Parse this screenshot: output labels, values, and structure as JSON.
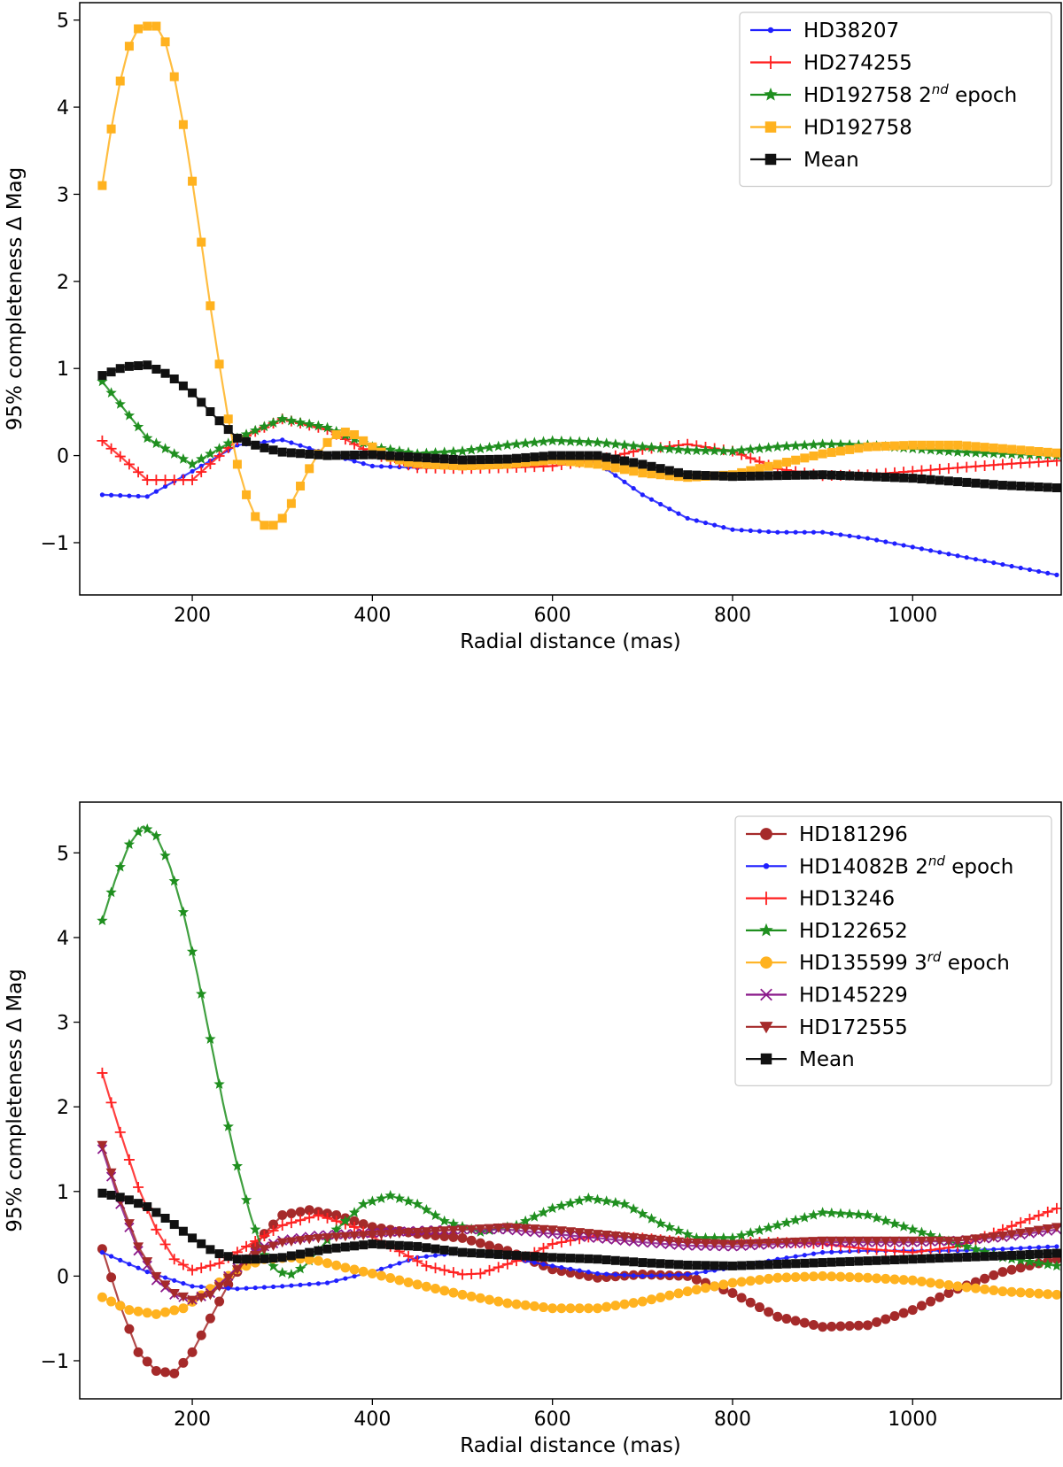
{
  "chart_data": [
    {
      "type": "line",
      "title": "",
      "xlabel": "Radial distance (mas)",
      "ylabel": "95% completeness Δ Mag",
      "xlim": [
        75,
        1165
      ],
      "ylim": [
        -1.6,
        5.2
      ],
      "xticks": [
        200,
        400,
        600,
        800,
        1000
      ],
      "xtick_labels": [
        "200",
        "400",
        "600",
        "800",
        "1000"
      ],
      "yticks": [
        -1,
        0,
        1,
        2,
        3,
        4,
        5
      ],
      "ytick_labels": [
        "−1",
        "0",
        "1",
        "2",
        "3",
        "4",
        "5"
      ],
      "grid": false,
      "legend_position": "top-right",
      "series": [
        {
          "name": "HD38207",
          "sup": "",
          "suffix": "",
          "color": "#1f1fff",
          "marker": "point",
          "x": [
            100,
            150,
            200,
            250,
            300,
            350,
            400,
            450,
            500,
            550,
            600,
            650,
            700,
            750,
            800,
            850,
            900,
            950,
            1000,
            1050,
            1100,
            1160
          ],
          "y": [
            -0.45,
            -0.47,
            -0.18,
            0.12,
            0.18,
            0.02,
            -0.12,
            -0.14,
            -0.12,
            -0.07,
            -0.05,
            -0.08,
            -0.45,
            -0.72,
            -0.85,
            -0.88,
            -0.88,
            -0.95,
            -1.05,
            -1.15,
            -1.25,
            -1.37
          ]
        },
        {
          "name": "HD274255",
          "sup": "",
          "suffix": "",
          "color": "#ff1f1f",
          "marker": "plus",
          "x": [
            100,
            150,
            200,
            250,
            300,
            350,
            400,
            450,
            500,
            550,
            600,
            650,
            700,
            750,
            800,
            850,
            900,
            950,
            1000,
            1050,
            1100,
            1160
          ],
          "y": [
            0.17,
            -0.28,
            -0.28,
            0.18,
            0.42,
            0.3,
            0.02,
            -0.14,
            -0.15,
            -0.14,
            -0.12,
            -0.05,
            0.07,
            0.13,
            0.05,
            -0.15,
            -0.23,
            -0.22,
            -0.18,
            -0.14,
            -0.1,
            -0.06
          ]
        },
        {
          "name": "HD192758 ",
          "sup": "nd",
          "suffix": " epoch",
          "prefix_num": "2",
          "color": "#1f8f1f",
          "marker": "star",
          "x": [
            100,
            150,
            200,
            250,
            300,
            350,
            400,
            450,
            500,
            550,
            600,
            650,
            700,
            750,
            800,
            850,
            900,
            950,
            1000,
            1050,
            1100,
            1160
          ],
          "y": [
            0.85,
            0.2,
            -0.1,
            0.2,
            0.42,
            0.32,
            0.1,
            0.02,
            0.05,
            0.12,
            0.17,
            0.15,
            0.1,
            0.06,
            0.05,
            0.1,
            0.13,
            0.12,
            0.08,
            0.04,
            0.02,
            0.0
          ]
        },
        {
          "name": "HD192758",
          "sup": "",
          "suffix": "",
          "color": "#ffb21f",
          "marker": "square",
          "x": [
            100,
            110,
            120,
            130,
            140,
            150,
            160,
            170,
            180,
            190,
            200,
            210,
            220,
            230,
            240,
            250,
            260,
            270,
            280,
            290,
            300,
            310,
            320,
            330,
            340,
            350,
            360,
            370,
            380,
            400,
            420,
            440,
            460,
            500,
            550,
            600,
            650,
            700,
            750,
            800,
            850,
            900,
            950,
            1000,
            1050,
            1100,
            1160
          ],
          "y": [
            3.1,
            3.75,
            4.3,
            4.7,
            4.9,
            4.93,
            4.93,
            4.75,
            4.35,
            3.8,
            3.15,
            2.45,
            1.72,
            1.05,
            0.42,
            -0.1,
            -0.45,
            -0.7,
            -0.8,
            -0.8,
            -0.72,
            -0.55,
            -0.35,
            -0.15,
            0.02,
            0.15,
            0.24,
            0.27,
            0.24,
            0.1,
            -0.02,
            -0.08,
            -0.1,
            -0.12,
            -0.1,
            -0.05,
            -0.1,
            -0.2,
            -0.25,
            -0.22,
            -0.1,
            0.02,
            0.1,
            0.12,
            0.12,
            0.08,
            0.03
          ]
        },
        {
          "name": "Mean",
          "sup": "",
          "suffix": "",
          "color": "#111111",
          "marker": "square",
          "x": [
            100,
            125,
            150,
            175,
            200,
            225,
            250,
            275,
            300,
            350,
            400,
            450,
            500,
            550,
            600,
            650,
            700,
            750,
            800,
            850,
            900,
            950,
            1000,
            1050,
            1100,
            1160
          ],
          "y": [
            0.92,
            1.02,
            1.04,
            0.92,
            0.72,
            0.45,
            0.2,
            0.1,
            0.04,
            0.0,
            0.01,
            -0.02,
            -0.05,
            -0.04,
            0.0,
            0.0,
            -0.1,
            -0.22,
            -0.24,
            -0.23,
            -0.22,
            -0.24,
            -0.26,
            -0.3,
            -0.34,
            -0.37
          ]
        }
      ]
    },
    {
      "type": "line",
      "title": "",
      "xlabel": "Radial distance (mas)",
      "ylabel": "95% completeness Δ Mag",
      "xlim": [
        75,
        1165
      ],
      "ylim": [
        -1.45,
        5.6
      ],
      "xticks": [
        200,
        400,
        600,
        800,
        1000
      ],
      "xtick_labels": [
        "200",
        "400",
        "600",
        "800",
        "1000"
      ],
      "yticks": [
        -1,
        0,
        1,
        2,
        3,
        4,
        5
      ],
      "ytick_labels": [
        "−1",
        "0",
        "1",
        "2",
        "3",
        "4",
        "5"
      ],
      "grid": false,
      "legend_position": "top-right",
      "series": [
        {
          "name": "HD181296",
          "sup": "",
          "suffix": "",
          "color": "#a52a2a",
          "marker": "circle",
          "x": [
            100,
            120,
            140,
            160,
            180,
            200,
            220,
            240,
            260,
            280,
            300,
            330,
            360,
            400,
            450,
            500,
            550,
            600,
            650,
            700,
            750,
            800,
            850,
            900,
            950,
            1000,
            1050,
            1100,
            1160
          ],
          "y": [
            0.32,
            -0.35,
            -0.9,
            -1.12,
            -1.15,
            -0.9,
            -0.5,
            -0.1,
            0.2,
            0.5,
            0.72,
            0.78,
            0.72,
            0.58,
            0.5,
            0.45,
            0.3,
            0.08,
            -0.02,
            0.02,
            0.0,
            -0.2,
            -0.48,
            -0.6,
            -0.58,
            -0.4,
            -0.15,
            0.05,
            0.2
          ]
        },
        {
          "name": "HD14082B ",
          "sup": "nd",
          "suffix": " epoch",
          "prefix_num": "2",
          "color": "#1f1fff",
          "marker": "point",
          "x": [
            100,
            150,
            200,
            250,
            300,
            350,
            400,
            450,
            500,
            550,
            600,
            650,
            700,
            750,
            800,
            850,
            900,
            950,
            1000,
            1050,
            1100,
            1160
          ],
          "y": [
            0.28,
            0.05,
            -0.12,
            -0.15,
            -0.12,
            -0.08,
            0.05,
            0.22,
            0.28,
            0.22,
            0.12,
            0.03,
            0.0,
            0.02,
            0.1,
            0.2,
            0.28,
            0.3,
            0.3,
            0.3,
            0.32,
            0.35
          ]
        },
        {
          "name": "HD13246",
          "sup": "",
          "suffix": "",
          "color": "#ff1f1f",
          "marker": "plus",
          "x": [
            100,
            120,
            140,
            160,
            180,
            200,
            230,
            260,
            300,
            340,
            380,
            420,
            460,
            500,
            520,
            560,
            600,
            650,
            700,
            750,
            800,
            850,
            900,
            950,
            1000,
            1050,
            1100,
            1160
          ],
          "y": [
            2.4,
            1.7,
            1.05,
            0.55,
            0.2,
            0.07,
            0.15,
            0.35,
            0.6,
            0.72,
            0.58,
            0.35,
            0.12,
            0.02,
            0.03,
            0.18,
            0.38,
            0.48,
            0.45,
            0.4,
            0.4,
            0.4,
            0.38,
            0.32,
            0.28,
            0.35,
            0.55,
            0.8
          ]
        },
        {
          "name": "HD122652",
          "sup": "",
          "suffix": "",
          "color": "#1f8f1f",
          "marker": "star",
          "x": [
            100,
            115,
            130,
            145,
            160,
            175,
            190,
            205,
            220,
            235,
            250,
            265,
            280,
            295,
            310,
            325,
            340,
            360,
            390,
            420,
            450,
            480,
            520,
            560,
            600,
            640,
            680,
            720,
            760,
            800,
            850,
            900,
            950,
            1000,
            1050,
            1100,
            1160
          ],
          "y": [
            4.2,
            4.7,
            5.1,
            5.32,
            5.2,
            4.85,
            4.3,
            3.6,
            2.8,
            2.0,
            1.3,
            0.7,
            0.25,
            0.05,
            0.02,
            0.12,
            0.3,
            0.55,
            0.85,
            0.95,
            0.85,
            0.65,
            0.52,
            0.6,
            0.8,
            0.92,
            0.85,
            0.62,
            0.45,
            0.45,
            0.6,
            0.75,
            0.72,
            0.55,
            0.38,
            0.22,
            0.12
          ]
        },
        {
          "name": "HD135599 ",
          "sup": "rd",
          "suffix": " epoch",
          "prefix_num": "3",
          "color": "#ffb21f",
          "marker": "circle",
          "x": [
            100,
            130,
            160,
            190,
            220,
            250,
            280,
            310,
            340,
            370,
            400,
            450,
            500,
            550,
            600,
            650,
            700,
            750,
            800,
            850,
            900,
            950,
            1000,
            1050,
            1100,
            1160
          ],
          "y": [
            -0.25,
            -0.4,
            -0.45,
            -0.38,
            -0.15,
            0.08,
            0.2,
            0.22,
            0.18,
            0.1,
            0.03,
            -0.1,
            -0.22,
            -0.32,
            -0.38,
            -0.38,
            -0.3,
            -0.18,
            -0.08,
            -0.02,
            0.0,
            -0.02,
            -0.05,
            -0.12,
            -0.18,
            -0.22
          ]
        },
        {
          "name": "HD145229",
          "sup": "",
          "suffix": "",
          "color": "#8b1a8b",
          "marker": "x",
          "x": [
            100,
            120,
            140,
            160,
            180,
            200,
            220,
            240,
            260,
            280,
            300,
            340,
            380,
            420,
            460,
            500,
            550,
            600,
            650,
            700,
            750,
            800,
            850,
            900,
            950,
            1000,
            1050,
            1100,
            1160
          ],
          "y": [
            1.5,
            0.85,
            0.3,
            -0.05,
            -0.22,
            -0.28,
            -0.2,
            0.0,
            0.2,
            0.35,
            0.42,
            0.48,
            0.5,
            0.52,
            0.54,
            0.55,
            0.55,
            0.5,
            0.45,
            0.4,
            0.36,
            0.35,
            0.38,
            0.4,
            0.4,
            0.4,
            0.42,
            0.46,
            0.55
          ]
        },
        {
          "name": "HD172555",
          "sup": "",
          "suffix": "",
          "color": "#a52a2a",
          "marker": "triangle",
          "x": [
            100,
            120,
            140,
            160,
            180,
            200,
            220,
            240,
            260,
            280,
            300,
            340,
            380,
            420,
            460,
            500,
            550,
            600,
            650,
            700,
            750,
            800,
            850,
            900,
            950,
            1000,
            1050,
            1100,
            1160
          ],
          "y": [
            1.55,
            0.9,
            0.35,
            0.0,
            -0.2,
            -0.28,
            -0.22,
            -0.02,
            0.18,
            0.32,
            0.4,
            0.45,
            0.48,
            0.5,
            0.53,
            0.55,
            0.58,
            0.55,
            0.5,
            0.45,
            0.4,
            0.38,
            0.4,
            0.42,
            0.42,
            0.42,
            0.42,
            0.48,
            0.58
          ]
        },
        {
          "name": "Mean",
          "sup": "",
          "suffix": "",
          "color": "#111111",
          "marker": "square",
          "x": [
            100,
            125,
            150,
            175,
            200,
            225,
            250,
            275,
            300,
            350,
            400,
            450,
            500,
            550,
            600,
            650,
            700,
            750,
            800,
            850,
            900,
            950,
            1000,
            1050,
            1100,
            1160
          ],
          "y": [
            0.98,
            0.92,
            0.82,
            0.65,
            0.45,
            0.28,
            0.2,
            0.2,
            0.22,
            0.32,
            0.38,
            0.35,
            0.28,
            0.25,
            0.22,
            0.2,
            0.16,
            0.13,
            0.12,
            0.14,
            0.16,
            0.18,
            0.2,
            0.22,
            0.24,
            0.27
          ]
        }
      ]
    }
  ]
}
